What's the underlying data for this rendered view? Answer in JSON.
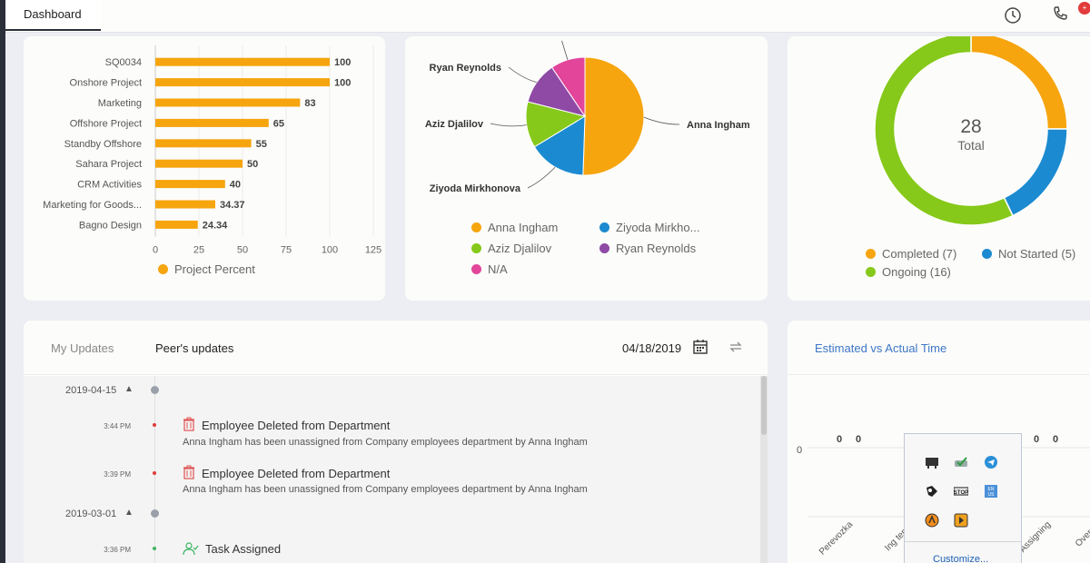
{
  "top_tab": "Dashboard",
  "notif_badge": "+",
  "chart_data": [
    {
      "type": "bar",
      "orientation": "horizontal",
      "categories": [
        "SQ0034",
        "Onshore Project",
        "Marketing",
        "Offshore Project",
        "Standby Offshore",
        "Sahara Project",
        "CRM Activities",
        "Marketing for Goods...",
        "Bagno Design"
      ],
      "values": [
        100,
        100,
        83,
        65,
        55,
        50,
        40,
        34.37,
        24.34
      ],
      "value_labels": [
        "100",
        "100",
        "83",
        "65",
        "55",
        "50",
        "40",
        "34.37",
        "24.34"
      ],
      "series": [
        {
          "name": "Project Percent",
          "values": [
            100,
            100,
            83,
            65,
            55,
            50,
            40,
            34.37,
            24.34
          ]
        }
      ],
      "xlim": [
        0,
        125
      ],
      "xticks": [
        "0",
        "25",
        "50",
        "75",
        "100",
        "125"
      ],
      "color": "#f6a50f",
      "legend": "bottom"
    },
    {
      "type": "pie",
      "labels": [
        "Anna Ingham",
        "Ziyoda Mirkhonova",
        "Aziz Djalilov",
        "Ryan Reynolds",
        "N/A"
      ],
      "values": [
        48,
        15,
        12,
        11,
        9
      ],
      "colors": [
        "#f6a50f",
        "#1b8ad0",
        "#86c91a",
        "#8f4aa5",
        "#e2459a"
      ],
      "legend": [
        "Anna Ingham",
        "Ziyoda Mirkho...",
        "Aziz Djalilov",
        "Ryan Reynolds",
        "N/A"
      ]
    },
    {
      "type": "pie",
      "style": "donut",
      "center_value": "28",
      "center_label": "Total",
      "labels": [
        "Completed",
        "Not Started",
        "Ongoing"
      ],
      "values": [
        7,
        5,
        16
      ],
      "colors": [
        "#f6a50f",
        "#1b8ad0",
        "#86c91a"
      ],
      "legend": [
        "Completed (7)",
        "Not Started (5)",
        "Ongoing (16)"
      ]
    }
  ],
  "updates": {
    "tab_my": "My Updates",
    "tab_peer": "Peer's updates",
    "date": "04/18/2019",
    "groups": [
      {
        "date": "2019-04-15",
        "events": [
          {
            "time": "3:44 PM",
            "title": "Employee Deleted from Department",
            "desc": "Anna Ingham has been unassigned from Company employees department by Anna Ingham"
          },
          {
            "time": "3:39 PM",
            "title": "Employee Deleted from Department",
            "desc": "Anna Ingham has been unassigned from Company employees department by Anna Ingham"
          }
        ]
      },
      {
        "date": "2019-03-01",
        "events": [
          {
            "time": "3:36 PM",
            "title": "Task Assigned",
            "desc": ""
          }
        ]
      }
    ]
  },
  "estimated": {
    "title": "Estimated vs Actual Time",
    "y_zero": "0",
    "value_labels": [
      "0",
      "0",
      "0",
      "0"
    ],
    "x_labels": [
      "Perevozka",
      "Ing templ",
      "Assigning",
      "Over Pr"
    ]
  },
  "tray": {
    "customize": "Customize...",
    "icons": [
      "network-icon",
      "check-icon",
      "telegram-icon",
      "security-icon",
      "stop-icon",
      "language-icon",
      "avast-icon",
      "media-icon"
    ]
  }
}
